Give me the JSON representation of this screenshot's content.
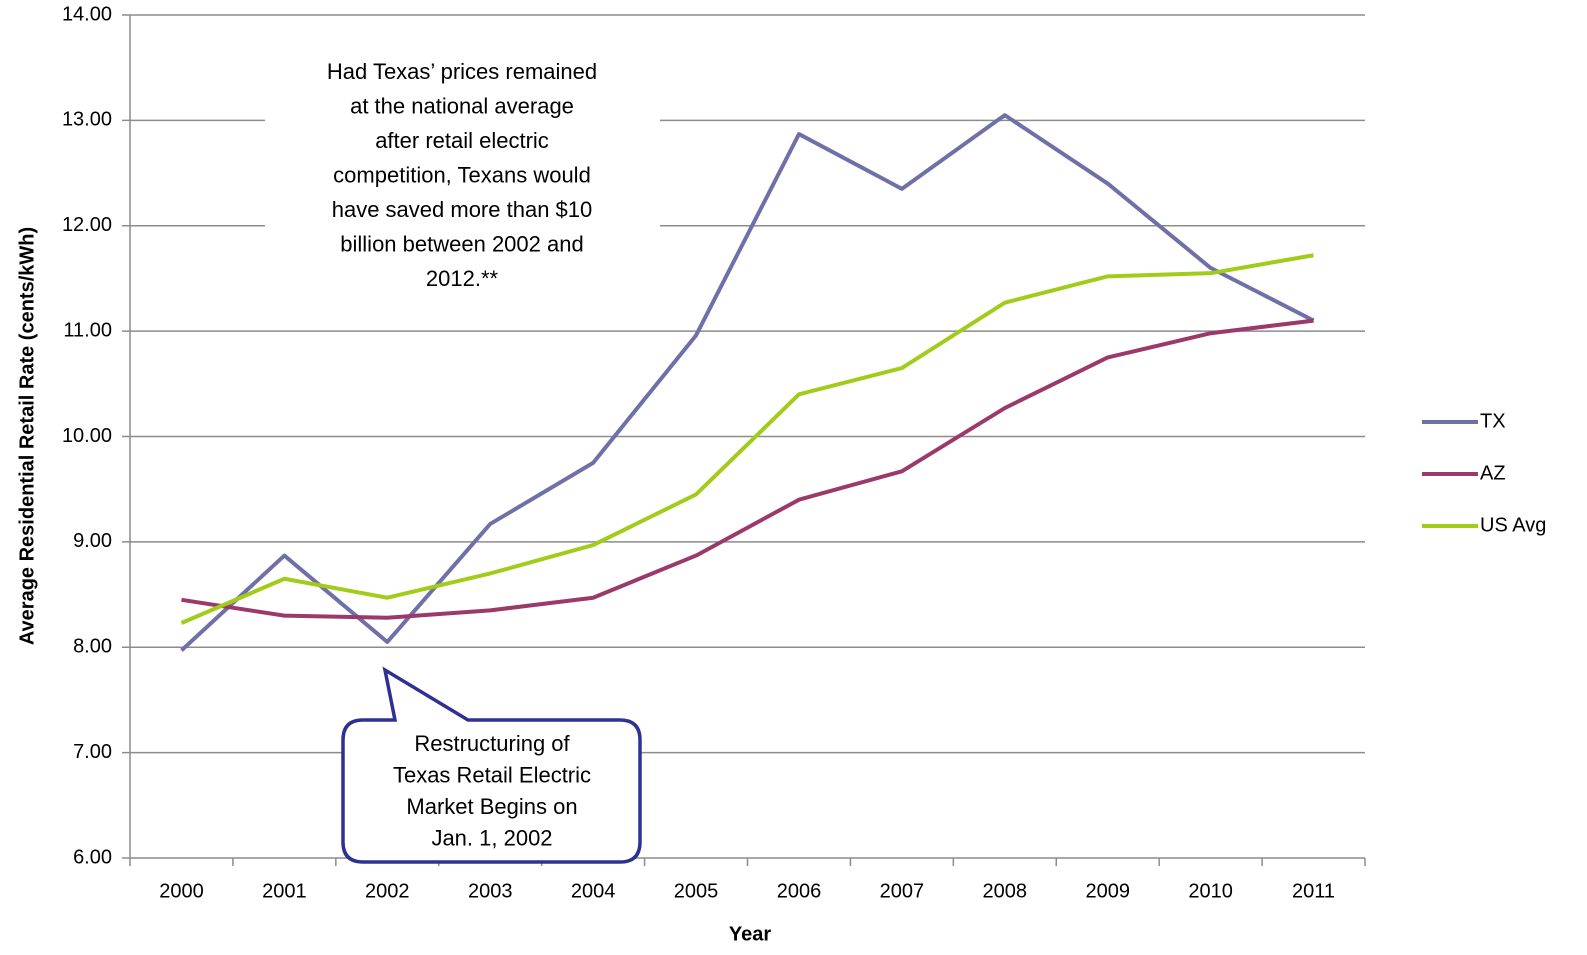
{
  "chart_data": {
    "type": "line",
    "xlabel": "Year",
    "ylabel": "Average Residential Retail Rate (cents/kWh)",
    "categories": [
      "2000",
      "2001",
      "2002",
      "2003",
      "2004",
      "2005",
      "2006",
      "2007",
      "2008",
      "2009",
      "2010",
      "2011"
    ],
    "series": [
      {
        "name": "TX",
        "color": "#7070a8",
        "values": [
          7.97,
          8.87,
          8.05,
          9.17,
          9.75,
          10.96,
          12.87,
          12.35,
          13.05,
          12.4,
          11.6,
          11.1
        ]
      },
      {
        "name": "AZ",
        "color": "#9b3a6a",
        "values": [
          8.45,
          8.3,
          8.28,
          8.35,
          8.47,
          8.87,
          9.4,
          9.67,
          10.27,
          10.75,
          10.98,
          11.1
        ]
      },
      {
        "name": "US Avg",
        "color": "#a2cc1a",
        "values": [
          8.23,
          8.65,
          8.47,
          8.7,
          8.97,
          9.45,
          10.4,
          10.65,
          11.27,
          11.52,
          11.55,
          11.72
        ]
      }
    ],
    "ylim": [
      6,
      14
    ],
    "yticks": [
      {
        "value": 6,
        "label": "6.00"
      },
      {
        "value": 7,
        "label": "7.00"
      },
      {
        "value": 8,
        "label": "8.00"
      },
      {
        "value": 9,
        "label": "9.00"
      },
      {
        "value": 10,
        "label": "10.00"
      },
      {
        "value": 11,
        "label": "11.00"
      },
      {
        "value": 12,
        "label": "12.00"
      },
      {
        "value": 13,
        "label": "13.00"
      },
      {
        "value": 14,
        "label": "14.00"
      }
    ],
    "grid": true,
    "legend": "right",
    "annotations": [
      {
        "lines": [
          "Had Texas’ prices remained",
          "at the national average",
          "after retail electric",
          "competition, Texans would",
          "have saved more than $10",
          "billion between 2002 and",
          "2012.**"
        ]
      },
      {
        "lines": [
          "Restructuring of",
          "Texas Retail Electric",
          "Market Begins on",
          "Jan. 1, 2002"
        ]
      }
    ]
  }
}
